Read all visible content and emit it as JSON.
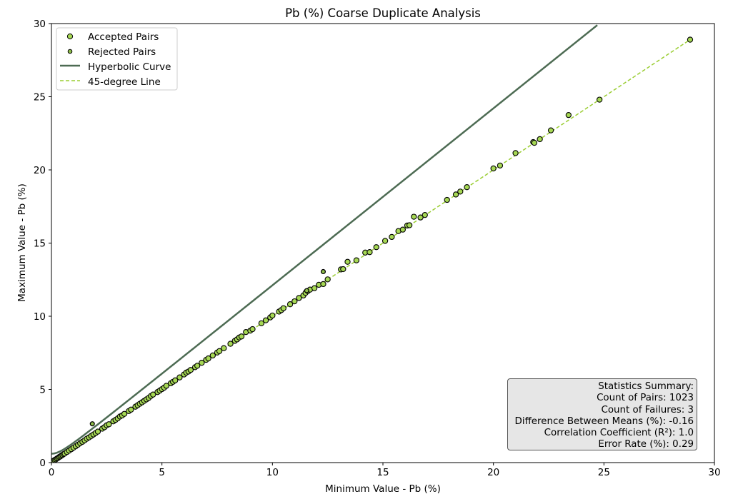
{
  "chart_data": {
    "type": "scatter",
    "title": "Pb (%) Coarse Duplicate Analysis",
    "xlabel": "Minimum Value - Pb (%)",
    "ylabel": "Maximum Value - Pb (%)",
    "xlim": [
      0,
      30
    ],
    "ylim": [
      0,
      30
    ],
    "x_ticks": [
      0,
      5,
      10,
      15,
      20,
      25,
      30
    ],
    "y_ticks": [
      0,
      5,
      10,
      15,
      20,
      25,
      30
    ],
    "grid": false,
    "legend_position": "top-left",
    "legend": [
      "Accepted Pairs",
      "Rejected Pairs",
      "Hyperbolic Curve",
      "45-degree Line"
    ],
    "colors": {
      "accepted_fill": "#a6d854",
      "rejected_fill": "#8fbf4a",
      "marker_edge": "#000000",
      "hyperbolic_curve": "#4d6b53",
      "line_45": "#9acd32",
      "stats_bg": "#e6e6e6"
    },
    "series": [
      {
        "name": "Accepted Pairs",
        "points": [
          [
            0.0,
            0.05
          ],
          [
            0.05,
            0.1
          ],
          [
            0.1,
            0.12
          ],
          [
            0.15,
            0.18
          ],
          [
            0.2,
            0.22
          ],
          [
            0.25,
            0.28
          ],
          [
            0.3,
            0.32
          ],
          [
            0.35,
            0.38
          ],
          [
            0.4,
            0.42
          ],
          [
            0.45,
            0.48
          ],
          [
            0.5,
            0.52
          ],
          [
            0.55,
            0.58
          ],
          [
            0.6,
            0.62
          ],
          [
            0.7,
            0.72
          ],
          [
            0.8,
            0.82
          ],
          [
            0.9,
            0.92
          ],
          [
            1.0,
            1.02
          ],
          [
            1.1,
            1.12
          ],
          [
            1.2,
            1.22
          ],
          [
            1.3,
            1.33
          ],
          [
            1.4,
            1.42
          ],
          [
            1.5,
            1.52
          ],
          [
            1.6,
            1.63
          ],
          [
            1.7,
            1.72
          ],
          [
            1.8,
            1.82
          ],
          [
            1.9,
            1.92
          ],
          [
            2.0,
            2.02
          ],
          [
            2.1,
            2.12
          ],
          [
            2.3,
            2.32
          ],
          [
            2.4,
            2.42
          ],
          [
            2.5,
            2.55
          ],
          [
            2.6,
            2.62
          ],
          [
            2.8,
            2.82
          ],
          [
            2.9,
            2.92
          ],
          [
            3.0,
            3.02
          ],
          [
            3.1,
            3.15
          ],
          [
            3.2,
            3.22
          ],
          [
            3.3,
            3.33
          ],
          [
            3.5,
            3.52
          ],
          [
            3.6,
            3.62
          ],
          [
            3.8,
            3.82
          ],
          [
            3.9,
            3.92
          ],
          [
            4.0,
            4.02
          ],
          [
            4.1,
            4.12
          ],
          [
            4.2,
            4.22
          ],
          [
            4.3,
            4.32
          ],
          [
            4.4,
            4.42
          ],
          [
            4.5,
            4.55
          ],
          [
            4.6,
            4.65
          ],
          [
            4.8,
            4.82
          ],
          [
            4.9,
            4.92
          ],
          [
            5.0,
            5.02
          ],
          [
            5.1,
            5.12
          ],
          [
            5.2,
            5.25
          ],
          [
            5.4,
            5.42
          ],
          [
            5.5,
            5.52
          ],
          [
            5.6,
            5.62
          ],
          [
            5.8,
            5.82
          ],
          [
            6.0,
            6.02
          ],
          [
            6.1,
            6.15
          ],
          [
            6.2,
            6.22
          ],
          [
            6.3,
            6.33
          ],
          [
            6.5,
            6.52
          ],
          [
            6.6,
            6.62
          ],
          [
            6.8,
            6.82
          ],
          [
            7.0,
            7.02
          ],
          [
            7.1,
            7.12
          ],
          [
            7.3,
            7.32
          ],
          [
            7.5,
            7.52
          ],
          [
            7.6,
            7.62
          ],
          [
            7.8,
            7.82
          ],
          [
            8.1,
            8.12
          ],
          [
            8.3,
            8.32
          ],
          [
            8.4,
            8.42
          ],
          [
            8.5,
            8.55
          ],
          [
            8.6,
            8.62
          ],
          [
            8.8,
            8.92
          ],
          [
            9.0,
            9.02
          ],
          [
            9.1,
            9.12
          ],
          [
            9.5,
            9.52
          ],
          [
            9.7,
            9.72
          ],
          [
            9.9,
            9.92
          ],
          [
            10.0,
            10.05
          ],
          [
            10.3,
            10.32
          ],
          [
            10.4,
            10.42
          ],
          [
            10.5,
            10.55
          ],
          [
            10.8,
            10.82
          ],
          [
            11.0,
            11.02
          ],
          [
            11.2,
            11.25
          ],
          [
            11.4,
            11.42
          ],
          [
            11.5,
            11.6
          ],
          [
            11.6,
            11.72
          ],
          [
            11.7,
            11.82
          ],
          [
            11.9,
            11.92
          ],
          [
            12.1,
            12.15
          ],
          [
            12.3,
            12.2
          ],
          [
            12.5,
            12.52
          ],
          [
            13.1,
            13.2
          ],
          [
            13.2,
            13.22
          ],
          [
            13.4,
            13.72
          ],
          [
            13.8,
            13.82
          ],
          [
            14.2,
            14.35
          ],
          [
            14.4,
            14.38
          ],
          [
            14.7,
            14.72
          ],
          [
            15.1,
            15.15
          ],
          [
            15.4,
            15.42
          ],
          [
            15.7,
            15.82
          ],
          [
            15.9,
            15.92
          ],
          [
            16.1,
            16.2
          ],
          [
            16.2,
            16.22
          ],
          [
            16.4,
            16.8
          ],
          [
            16.7,
            16.75
          ],
          [
            16.9,
            16.92
          ],
          [
            17.9,
            17.95
          ],
          [
            18.3,
            18.32
          ],
          [
            18.5,
            18.52
          ],
          [
            18.8,
            18.82
          ],
          [
            20.0,
            20.1
          ],
          [
            20.3,
            20.3
          ],
          [
            21.0,
            21.15
          ],
          [
            21.8,
            21.9
          ],
          [
            21.85,
            21.85
          ],
          [
            22.1,
            22.1
          ],
          [
            22.6,
            22.7
          ],
          [
            23.4,
            23.75
          ],
          [
            24.8,
            24.8
          ],
          [
            28.9,
            28.9
          ]
        ]
      },
      {
        "name": "Rejected Pairs",
        "points": [
          [
            1.85,
            2.65
          ],
          [
            11.55,
            11.75
          ],
          [
            12.3,
            13.05
          ]
        ]
      },
      {
        "name": "Hyperbolic Curve",
        "function": "y = sqrt(x^2 + 0.5^2) * 1.21",
        "x_range": [
          0,
          24.7
        ]
      },
      {
        "name": "45-degree Line",
        "x": [
          0,
          29
        ],
        "y": [
          0,
          29
        ]
      }
    ],
    "stats_summary": {
      "title": "Statistics Summary:",
      "lines": [
        "Count of Pairs: 1023",
        "Count of Failures: 3",
        "Difference Between Means (%): -0.16",
        "Correlation Coefficient (R²): 1.0",
        "Error Rate (%): 0.29"
      ]
    }
  }
}
